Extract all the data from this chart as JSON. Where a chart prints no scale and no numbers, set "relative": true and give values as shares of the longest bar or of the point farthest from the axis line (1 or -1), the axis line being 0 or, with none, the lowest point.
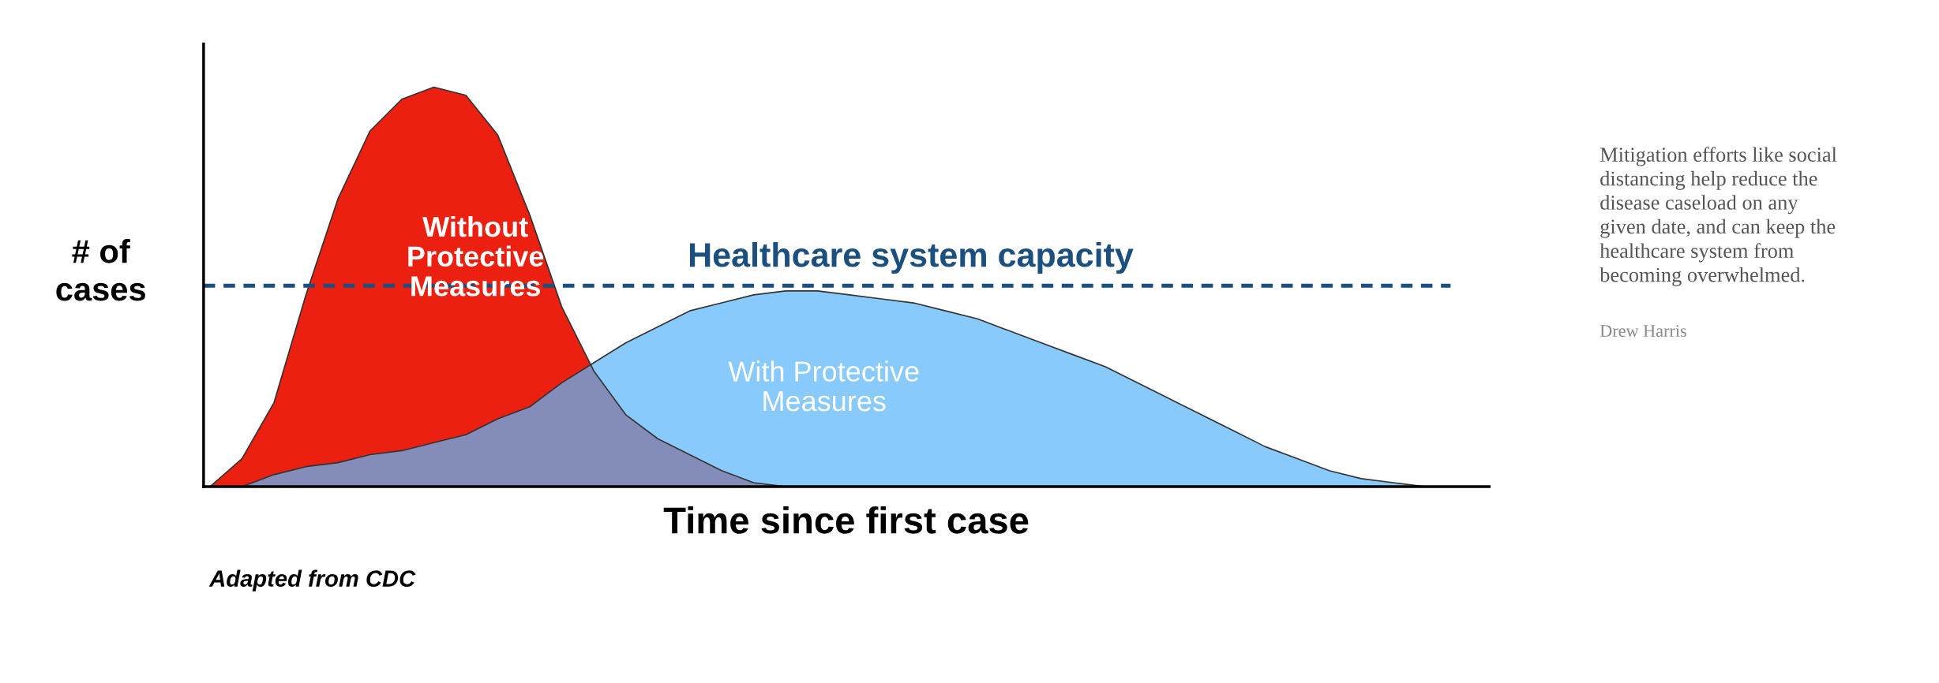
{
  "chart_data": {
    "type": "area",
    "relative": true,
    "xlabel": "Time since first case",
    "ylabel": "# of\ncases",
    "categories": [
      null,
      null,
      null,
      null,
      null,
      null,
      null,
      null,
      null,
      null,
      null,
      null,
      null,
      null,
      null,
      null,
      null,
      null,
      null,
      null,
      null,
      null,
      null,
      null,
      null,
      null,
      null,
      null,
      null,
      null,
      null,
      null,
      null,
      null,
      null,
      null,
      null,
      null,
      null,
      null,
      null
    ],
    "series": [
      {
        "name": "Without\nProtective\nMeasures",
        "color": "#ec2010",
        "values": [
          0,
          0.07,
          0.21,
          0.48,
          0.72,
          0.89,
          0.97,
          1,
          0.98,
          0.88,
          0.68,
          0.45,
          0.29,
          0.18,
          0.12,
          0.08,
          0.04,
          0.01,
          0,
          null,
          null,
          null,
          null,
          null,
          null,
          null,
          null,
          null,
          null,
          null,
          null,
          null,
          null,
          null,
          null,
          null,
          null,
          null,
          null,
          null,
          null
        ]
      },
      {
        "name": "With Protective\nMeasures",
        "color": "#5cb5fb",
        "values": [
          null,
          0,
          0.03,
          0.05,
          0.06,
          0.08,
          0.09,
          0.11,
          0.13,
          0.17,
          0.2,
          0.26,
          0.31,
          0.36,
          0.4,
          0.44,
          0.46,
          0.48,
          0.49,
          0.49,
          0.48,
          0.47,
          0.46,
          0.44,
          0.42,
          0.39,
          0.36,
          0.33,
          0.3,
          0.26,
          0.22,
          0.18,
          0.14,
          0.1,
          0.07,
          0.04,
          0.02,
          0.01,
          0,
          0,
          null
        ]
      }
    ],
    "ref_lines": [
      {
        "axis": "y",
        "value": 0.503,
        "label": "Healthcare system capacity",
        "color": "#1a4f80",
        "line_style": "dashed"
      }
    ],
    "annotations": [
      "Adapted from CDC",
      "Mitigation efforts like social\ndistancing help reduce the\ndisease caseload on any\ngiven date, and can keep the\nhealthcare system from\nbecoming overwhelmed.",
      "Drew Harris"
    ]
  }
}
